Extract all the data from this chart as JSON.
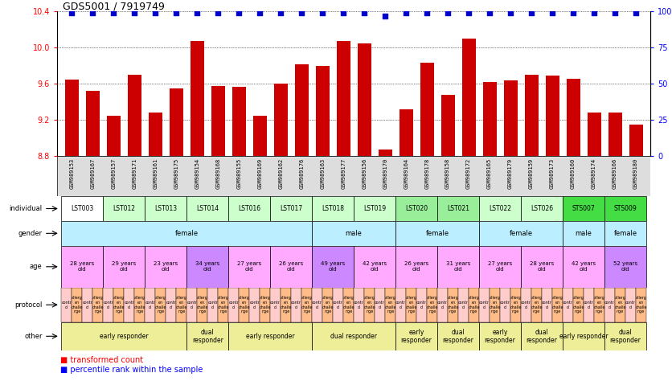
{
  "title": "GDS5001 / 7919749",
  "samples": [
    "GSM989153",
    "GSM989167",
    "GSM989157",
    "GSM989171",
    "GSM989161",
    "GSM989175",
    "GSM989154",
    "GSM989168",
    "GSM989155",
    "GSM989169",
    "GSM989162",
    "GSM989176",
    "GSM989163",
    "GSM989177",
    "GSM989156",
    "GSM989170",
    "GSM989164",
    "GSM989178",
    "GSM989158",
    "GSM989172",
    "GSM989165",
    "GSM989179",
    "GSM989159",
    "GSM989173",
    "GSM989160",
    "GSM989174",
    "GSM989166",
    "GSM989180"
  ],
  "bar_values": [
    9.65,
    9.52,
    9.25,
    9.7,
    9.28,
    9.55,
    10.07,
    9.58,
    9.57,
    9.25,
    9.6,
    9.82,
    9.8,
    10.07,
    10.05,
    8.87,
    9.32,
    9.83,
    9.48,
    10.1,
    9.62,
    9.64,
    9.7,
    9.69,
    9.66,
    9.28,
    9.28,
    9.15
  ],
  "percentile_values": [
    99,
    99,
    99,
    99,
    99,
    99,
    99,
    99,
    99,
    99,
    99,
    99,
    99,
    99,
    99,
    97,
    99,
    99,
    99,
    99,
    99,
    99,
    99,
    99,
    99,
    99,
    99,
    99
  ],
  "ylim_left": [
    8.8,
    10.4
  ],
  "ylim_right": [
    0,
    100
  ],
  "yticks_left": [
    8.8,
    9.2,
    9.6,
    10.0,
    10.4
  ],
  "yticks_right": [
    0,
    25,
    50,
    75,
    100
  ],
  "bar_color": "#cc0000",
  "percentile_color": "#0000cc",
  "individuals": [
    {
      "label": "LST003",
      "start": 0,
      "end": 2,
      "color": "#ffffff"
    },
    {
      "label": "LST012",
      "start": 2,
      "end": 4,
      "color": "#ccffcc"
    },
    {
      "label": "LST013",
      "start": 4,
      "end": 6,
      "color": "#ccffcc"
    },
    {
      "label": "LST014",
      "start": 6,
      "end": 8,
      "color": "#ccffcc"
    },
    {
      "label": "LST016",
      "start": 8,
      "end": 10,
      "color": "#ccffcc"
    },
    {
      "label": "LST017",
      "start": 10,
      "end": 12,
      "color": "#ccffcc"
    },
    {
      "label": "LST018",
      "start": 12,
      "end": 14,
      "color": "#ccffcc"
    },
    {
      "label": "LST019",
      "start": 14,
      "end": 16,
      "color": "#ccffcc"
    },
    {
      "label": "LST020",
      "start": 16,
      "end": 18,
      "color": "#99ee99"
    },
    {
      "label": "LST021",
      "start": 18,
      "end": 20,
      "color": "#99ee99"
    },
    {
      "label": "LST022",
      "start": 20,
      "end": 22,
      "color": "#ccffcc"
    },
    {
      "label": "LST026",
      "start": 22,
      "end": 24,
      "color": "#ccffcc"
    },
    {
      "label": "STS007",
      "start": 24,
      "end": 26,
      "color": "#44dd44"
    },
    {
      "label": "STS009",
      "start": 26,
      "end": 28,
      "color": "#44dd44"
    }
  ],
  "gender_groups": [
    {
      "label": "female",
      "start": 0,
      "end": 12,
      "color": "#bbeeff"
    },
    {
      "label": "male",
      "start": 12,
      "end": 16,
      "color": "#bbeeff"
    },
    {
      "label": "female",
      "start": 16,
      "end": 20,
      "color": "#bbeeff"
    },
    {
      "label": "female",
      "start": 20,
      "end": 24,
      "color": "#bbeeff"
    },
    {
      "label": "male",
      "start": 24,
      "end": 26,
      "color": "#bbeeff"
    },
    {
      "label": "female",
      "start": 26,
      "end": 28,
      "color": "#bbeeff"
    }
  ],
  "age_groups": [
    {
      "label": "28 years\nold",
      "start": 0,
      "end": 2,
      "color": "#ffaaff"
    },
    {
      "label": "29 years\nold",
      "start": 2,
      "end": 4,
      "color": "#ffaaff"
    },
    {
      "label": "23 years\nold",
      "start": 4,
      "end": 6,
      "color": "#ffaaff"
    },
    {
      "label": "34 years\nold",
      "start": 6,
      "end": 8,
      "color": "#cc88ff"
    },
    {
      "label": "27 years\nold",
      "start": 8,
      "end": 10,
      "color": "#ffaaff"
    },
    {
      "label": "26 years\nold",
      "start": 10,
      "end": 12,
      "color": "#ffaaff"
    },
    {
      "label": "49 years\nold",
      "start": 12,
      "end": 14,
      "color": "#cc88ff"
    },
    {
      "label": "42 years\nold",
      "start": 14,
      "end": 16,
      "color": "#ffaaff"
    },
    {
      "label": "26 years\nold",
      "start": 16,
      "end": 18,
      "color": "#ffaaff"
    },
    {
      "label": "31 years\nold",
      "start": 18,
      "end": 20,
      "color": "#ffaaff"
    },
    {
      "label": "27 years\nold",
      "start": 20,
      "end": 22,
      "color": "#ffaaff"
    },
    {
      "label": "28 years\nold",
      "start": 22,
      "end": 24,
      "color": "#ffaaff"
    },
    {
      "label": "42 years\nold",
      "start": 24,
      "end": 26,
      "color": "#ffaaff"
    },
    {
      "label": "52 years\nold",
      "start": 26,
      "end": 28,
      "color": "#cc88ff"
    }
  ],
  "other_groups": [
    {
      "label": "early responder",
      "start": 0,
      "end": 6,
      "color": "#eeee99"
    },
    {
      "label": "dual\nresponder",
      "start": 6,
      "end": 8,
      "color": "#eeee99"
    },
    {
      "label": "early responder",
      "start": 8,
      "end": 12,
      "color": "#eeee99"
    },
    {
      "label": "dual responder",
      "start": 12,
      "end": 16,
      "color": "#eeee99"
    },
    {
      "label": "early\nresponder",
      "start": 16,
      "end": 18,
      "color": "#eeee99"
    },
    {
      "label": "dual\nresponder",
      "start": 18,
      "end": 20,
      "color": "#eeee99"
    },
    {
      "label": "early\nresponder",
      "start": 20,
      "end": 22,
      "color": "#eeee99"
    },
    {
      "label": "dual\nresponder",
      "start": 22,
      "end": 24,
      "color": "#eeee99"
    },
    {
      "label": "early responder",
      "start": 24,
      "end": 26,
      "color": "#eeee99"
    },
    {
      "label": "dual\nresponder",
      "start": 26,
      "end": 28,
      "color": "#eeee99"
    }
  ],
  "protocol_ctrl_color": "#ffcccc",
  "protocol_allerg_color": "#ffbb88",
  "protocol_ctrl_label": "contr\nol",
  "protocol_allerg_label": "allerg\nen\nchalle\nnge",
  "legend_tc_label": "transformed count",
  "legend_pr_label": "percentile rank within the sample",
  "background_color": "#ffffff"
}
